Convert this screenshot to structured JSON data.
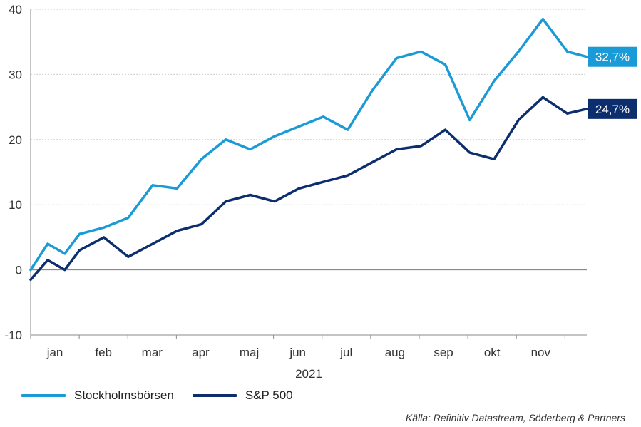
{
  "chart_data": {
    "type": "line",
    "title": "",
    "xlabel": "2021",
    "ylabel": "",
    "ylim": [
      -10,
      40
    ],
    "yticks": [
      "-10",
      "0",
      "10",
      "20",
      "30",
      "40"
    ],
    "x_tick_labels": [
      "jan",
      "feb",
      "mar",
      "apr",
      "maj",
      "jun",
      "jul",
      "aug",
      "sep",
      "okt",
      "nov"
    ],
    "grid": true,
    "legend_position": "bottom-left",
    "x": [
      0,
      0.35,
      0.7,
      1,
      1.5,
      2,
      2.5,
      3,
      3.5,
      4,
      4.5,
      5,
      5.5,
      6,
      6.5,
      7,
      7.5,
      8,
      8.5,
      9,
      9.5,
      10,
      10.5,
      11,
      11.4
    ],
    "series": [
      {
        "name": "Stockholmsbörsen",
        "color": "#1a9ad6",
        "end_label": "32,7%",
        "values": [
          0,
          4,
          2.5,
          5.5,
          6.5,
          8,
          13,
          12.5,
          17,
          20,
          18.5,
          20.5,
          22,
          23.5,
          21.5,
          27.5,
          32.5,
          33.5,
          31.5,
          23,
          29,
          33.5,
          38.5,
          33.5,
          32.7
        ]
      },
      {
        "name": "S&P 500",
        "color": "#0c2e6e",
        "end_label": "24,7%",
        "values": [
          -1.5,
          1.5,
          0,
          3,
          5,
          2,
          4,
          6,
          7,
          10.5,
          11.5,
          10.5,
          12.5,
          13.5,
          14.5,
          16.5,
          18.5,
          19,
          21.5,
          18,
          17,
          23,
          26.5,
          24,
          24.7
        ]
      }
    ]
  },
  "source_text": "Källa: Refinitiv Datastream, Söderberg & Partners"
}
